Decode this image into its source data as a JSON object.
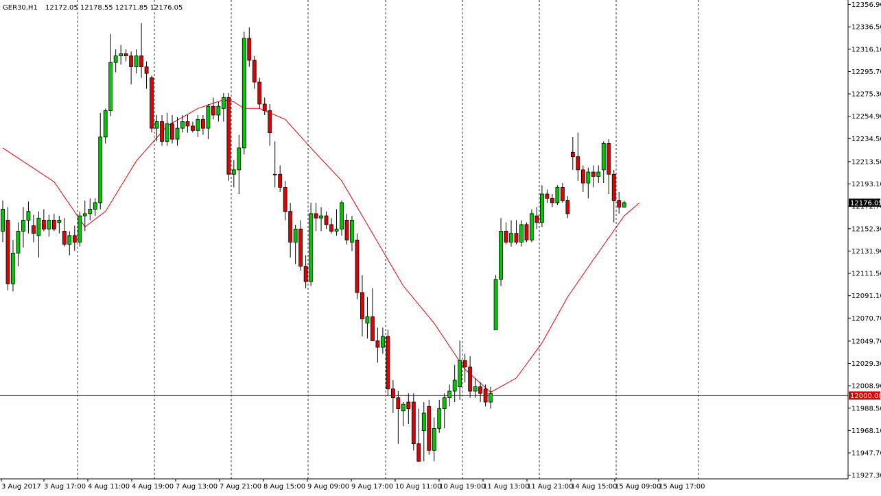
{
  "header": {
    "symbol": "GER30,H1",
    "ohlc": "12172.05 12178.55 12171.85 12176.05"
  },
  "colors": {
    "bull": "#00c800",
    "bear": "#e00000",
    "ma": "#e00000",
    "grid": "#000000",
    "hline": "#e00000",
    "background": "#ffffff"
  },
  "chart_data": {
    "type": "candlestick",
    "symbol": "GER30",
    "timeframe": "H1",
    "grid": "vertical dotted separators",
    "y_ticks": [
      "12356.90",
      "12336.50",
      "12316.10",
      "12295.70",
      "12275.30",
      "12254.90",
      "12234.50",
      "12213.50",
      "12193.10",
      "12172.70",
      "12152.30",
      "12131.90",
      "12111.50",
      "12091.10",
      "12070.70",
      "12049.70",
      "12029.30",
      "12008.90",
      "11988.50",
      "11968.10",
      "11947.70",
      "11927.30"
    ],
    "y_range": [
      11925.2,
      12358.5
    ],
    "x_ticks": [
      "3 Aug 2017",
      "3 Aug 17:00",
      "4 Aug 11:00",
      "4 Aug 19:00",
      "7 Aug 13:00",
      "7 Aug 21:00",
      "8 Aug 15:00",
      "9 Aug 09:00",
      "9 Aug 17:00",
      "10 Aug 11:00",
      "10 Aug 19:00",
      "11 Aug 13:00",
      "11 Aug 21:00",
      "14 Aug 15:00",
      "15 Aug 09:00",
      "15 Aug 17:00"
    ],
    "current_price": "12176.05",
    "horizontal_line": {
      "value": 12000.0,
      "label": "12000.00"
    },
    "candles": [
      {
        "o": 12150,
        "h": 12178,
        "l": 12140,
        "c": 12170
      },
      {
        "o": 12160,
        "h": 12172,
        "l": 12096,
        "c": 12102
      },
      {
        "o": 12102,
        "h": 12142,
        "l": 12095,
        "c": 12130
      },
      {
        "o": 12130,
        "h": 12158,
        "l": 12118,
        "c": 12150
      },
      {
        "o": 12150,
        "h": 12172,
        "l": 12135,
        "c": 12160
      },
      {
        "o": 12160,
        "h": 12177,
        "l": 12148,
        "c": 12168
      },
      {
        "o": 12155,
        "h": 12165,
        "l": 12140,
        "c": 12148
      },
      {
        "o": 12146,
        "h": 12168,
        "l": 12126,
        "c": 12162
      },
      {
        "o": 12160,
        "h": 12170,
        "l": 12150,
        "c": 12152
      },
      {
        "o": 12152,
        "h": 12165,
        "l": 12145,
        "c": 12160
      },
      {
        "o": 12160,
        "h": 12166,
        "l": 12150,
        "c": 12152
      },
      {
        "o": 12158,
        "h": 12164,
        "l": 12148,
        "c": 12160
      },
      {
        "o": 12150,
        "h": 12162,
        "l": 12136,
        "c": 12138
      },
      {
        "o": 12138,
        "h": 12150,
        "l": 12128,
        "c": 12146
      },
      {
        "o": 12146,
        "h": 12155,
        "l": 12132,
        "c": 12140
      },
      {
        "o": 12140,
        "h": 12168,
        "l": 12136,
        "c": 12164
      },
      {
        "o": 12164,
        "h": 12178,
        "l": 12150,
        "c": 12166
      },
      {
        "o": 12166,
        "h": 12180,
        "l": 12160,
        "c": 12170
      },
      {
        "o": 12170,
        "h": 12180,
        "l": 12164,
        "c": 12176
      },
      {
        "o": 12176,
        "h": 12258,
        "l": 12170,
        "c": 12236
      },
      {
        "o": 12236,
        "h": 12262,
        "l": 12230,
        "c": 12260
      },
      {
        "o": 12260,
        "h": 12330,
        "l": 12255,
        "c": 12304
      },
      {
        "o": 12304,
        "h": 12316,
        "l": 12295,
        "c": 12310
      },
      {
        "o": 12310,
        "h": 12320,
        "l": 12302,
        "c": 12312
      },
      {
        "o": 12312,
        "h": 12316,
        "l": 12305,
        "c": 12310
      },
      {
        "o": 12310,
        "h": 12314,
        "l": 12284,
        "c": 12300
      },
      {
        "o": 12300,
        "h": 12316,
        "l": 12294,
        "c": 12310
      },
      {
        "o": 12310,
        "h": 12340,
        "l": 12290,
        "c": 12300
      },
      {
        "o": 12300,
        "h": 12305,
        "l": 12280,
        "c": 12294
      },
      {
        "o": 12290,
        "h": 12292,
        "l": 12240,
        "c": 12244
      },
      {
        "o": 12244,
        "h": 12256,
        "l": 12232,
        "c": 12250
      },
      {
        "o": 12250,
        "h": 12256,
        "l": 12228,
        "c": 12232
      },
      {
        "o": 12232,
        "h": 12258,
        "l": 12228,
        "c": 12248
      },
      {
        "o": 12248,
        "h": 12256,
        "l": 12230,
        "c": 12234
      },
      {
        "o": 12234,
        "h": 12254,
        "l": 12228,
        "c": 12244
      },
      {
        "o": 12244,
        "h": 12256,
        "l": 12240,
        "c": 12250
      },
      {
        "o": 12250,
        "h": 12256,
        "l": 12240,
        "c": 12246
      },
      {
        "o": 12246,
        "h": 12250,
        "l": 12240,
        "c": 12242
      },
      {
        "o": 12242,
        "h": 12256,
        "l": 12236,
        "c": 12252
      },
      {
        "o": 12252,
        "h": 12256,
        "l": 12238,
        "c": 12244
      },
      {
        "o": 12244,
        "h": 12266,
        "l": 12234,
        "c": 12264
      },
      {
        "o": 12264,
        "h": 12272,
        "l": 12252,
        "c": 12256
      },
      {
        "o": 12256,
        "h": 12268,
        "l": 12250,
        "c": 12264
      },
      {
        "o": 12262,
        "h": 12276,
        "l": 12250,
        "c": 12272
      },
      {
        "o": 12272,
        "h": 12276,
        "l": 12196,
        "c": 12202
      },
      {
        "o": 12202,
        "h": 12215,
        "l": 12190,
        "c": 12206
      },
      {
        "o": 12206,
        "h": 12238,
        "l": 12184,
        "c": 12226
      },
      {
        "o": 12226,
        "h": 12332,
        "l": 12220,
        "c": 12326
      },
      {
        "o": 12326,
        "h": 12336,
        "l": 12300,
        "c": 12306
      },
      {
        "o": 12306,
        "h": 12310,
        "l": 12280,
        "c": 12286
      },
      {
        "o": 12286,
        "h": 12290,
        "l": 12262,
        "c": 12266
      },
      {
        "o": 12266,
        "h": 12272,
        "l": 12256,
        "c": 12260
      },
      {
        "o": 12260,
        "h": 12266,
        "l": 12228,
        "c": 12240
      },
      {
        "o": 12202,
        "h": 12232,
        "l": 12190,
        "c": 12202
      },
      {
        "o": 12202,
        "h": 12210,
        "l": 12186,
        "c": 12190
      },
      {
        "o": 12190,
        "h": 12196,
        "l": 12160,
        "c": 12168
      },
      {
        "o": 12168,
        "h": 12176,
        "l": 12126,
        "c": 12140
      },
      {
        "o": 12140,
        "h": 12156,
        "l": 12120,
        "c": 12152
      },
      {
        "o": 12152,
        "h": 12160,
        "l": 12114,
        "c": 12118
      },
      {
        "o": 12118,
        "h": 12128,
        "l": 12098,
        "c": 12104
      },
      {
        "o": 12104,
        "h": 12176,
        "l": 12100,
        "c": 12166
      },
      {
        "o": 12166,
        "h": 12176,
        "l": 12150,
        "c": 12162
      },
      {
        "o": 12162,
        "h": 12172,
        "l": 12150,
        "c": 12164
      },
      {
        "o": 12164,
        "h": 12168,
        "l": 12152,
        "c": 12156
      },
      {
        "o": 12156,
        "h": 12162,
        "l": 12148,
        "c": 12150
      },
      {
        "o": 12150,
        "h": 12170,
        "l": 12146,
        "c": 12152
      },
      {
        "o": 12152,
        "h": 12178,
        "l": 12146,
        "c": 12176
      },
      {
        "o": 12160,
        "h": 12166,
        "l": 12138,
        "c": 12142
      },
      {
        "o": 12140,
        "h": 12164,
        "l": 12132,
        "c": 12160
      },
      {
        "o": 12142,
        "h": 12148,
        "l": 12088,
        "c": 12094
      },
      {
        "o": 12094,
        "h": 12110,
        "l": 12054,
        "c": 12070
      },
      {
        "o": 12066,
        "h": 12090,
        "l": 12052,
        "c": 12072
      },
      {
        "o": 12072,
        "h": 12098,
        "l": 12050,
        "c": 12050
      },
      {
        "o": 12050,
        "h": 12062,
        "l": 12030,
        "c": 12044
      },
      {
        "o": 12044,
        "h": 12062,
        "l": 12038,
        "c": 12054
      },
      {
        "o": 12054,
        "h": 12060,
        "l": 12000,
        "c": 12006
      },
      {
        "o": 12006,
        "h": 12014,
        "l": 11984,
        "c": 11998
      },
      {
        "o": 11998,
        "h": 12004,
        "l": 11956,
        "c": 11988
      },
      {
        "o": 11986,
        "h": 11994,
        "l": 11972,
        "c": 11992
      },
      {
        "o": 11994,
        "h": 12002,
        "l": 11974,
        "c": 11988
      },
      {
        "o": 11994,
        "h": 12002,
        "l": 11950,
        "c": 11956
      },
      {
        "o": 11956,
        "h": 11988,
        "l": 11940,
        "c": 11940
      },
      {
        "o": 11968,
        "h": 11994,
        "l": 11940,
        "c": 11984
      },
      {
        "o": 11990,
        "h": 11996,
        "l": 11946,
        "c": 11950
      },
      {
        "o": 11950,
        "h": 11980,
        "l": 11940,
        "c": 11970
      },
      {
        "o": 11970,
        "h": 11996,
        "l": 11966,
        "c": 11988
      },
      {
        "o": 11988,
        "h": 12002,
        "l": 11970,
        "c": 11998
      },
      {
        "o": 11998,
        "h": 12010,
        "l": 11990,
        "c": 12004
      },
      {
        "o": 12004,
        "h": 12028,
        "l": 11994,
        "c": 12014
      },
      {
        "o": 12008,
        "h": 12050,
        "l": 11996,
        "c": 12032
      },
      {
        "o": 12032,
        "h": 12038,
        "l": 12012,
        "c": 12026
      },
      {
        "o": 12026,
        "h": 12036,
        "l": 11998,
        "c": 12004
      },
      {
        "o": 12004,
        "h": 12016,
        "l": 11998,
        "c": 12008
      },
      {
        "o": 12008,
        "h": 12012,
        "l": 11994,
        "c": 12002
      },
      {
        "o": 12006,
        "h": 12010,
        "l": 11990,
        "c": 11994
      },
      {
        "o": 11994,
        "h": 12008,
        "l": 11988,
        "c": 12002
      },
      {
        "o": 12060,
        "h": 12110,
        "l": 12060,
        "c": 12106
      },
      {
        "o": 12106,
        "h": 12162,
        "l": 12100,
        "c": 12150
      },
      {
        "o": 12150,
        "h": 12158,
        "l": 12138,
        "c": 12140
      },
      {
        "o": 12140,
        "h": 12160,
        "l": 12136,
        "c": 12148
      },
      {
        "o": 12148,
        "h": 12160,
        "l": 12138,
        "c": 12140
      },
      {
        "o": 12140,
        "h": 12160,
        "l": 12136,
        "c": 12156
      },
      {
        "o": 12156,
        "h": 12158,
        "l": 12140,
        "c": 12142
      },
      {
        "o": 12142,
        "h": 12170,
        "l": 12140,
        "c": 12166
      },
      {
        "o": 12164,
        "h": 12172,
        "l": 12152,
        "c": 12158
      },
      {
        "o": 12158,
        "h": 12192,
        "l": 12154,
        "c": 12184
      },
      {
        "o": 12184,
        "h": 12188,
        "l": 12176,
        "c": 12180
      },
      {
        "o": 12180,
        "h": 12184,
        "l": 12172,
        "c": 12176
      },
      {
        "o": 12176,
        "h": 12192,
        "l": 12174,
        "c": 12190
      },
      {
        "o": 12190,
        "h": 12194,
        "l": 12176,
        "c": 12178
      },
      {
        "o": 12178,
        "h": 12182,
        "l": 12162,
        "c": 12166
      },
      {
        "o": 12222,
        "h": 12236,
        "l": 12206,
        "c": 12218
      },
      {
        "o": 12218,
        "h": 12240,
        "l": 12196,
        "c": 12206
      },
      {
        "o": 12206,
        "h": 12210,
        "l": 12186,
        "c": 12194
      },
      {
        "o": 12194,
        "h": 12208,
        "l": 12180,
        "c": 12204
      },
      {
        "o": 12204,
        "h": 12210,
        "l": 12190,
        "c": 12200
      },
      {
        "o": 12200,
        "h": 12210,
        "l": 12194,
        "c": 12204
      },
      {
        "o": 12206,
        "h": 12232,
        "l": 12194,
        "c": 12230
      },
      {
        "o": 12230,
        "h": 12234,
        "l": 12184,
        "c": 12202
      },
      {
        "o": 12202,
        "h": 12206,
        "l": 12158,
        "c": 12178
      },
      {
        "o": 12178,
        "h": 12186,
        "l": 12166,
        "c": 12172
      },
      {
        "o": 12172,
        "h": 12178,
        "l": 12172,
        "c": 12176
      }
    ],
    "moving_average": [
      {
        "i": 0,
        "v": 12226
      },
      {
        "i": 10,
        "v": 12195
      },
      {
        "i": 16,
        "v": 12154
      },
      {
        "i": 20,
        "v": 12168
      },
      {
        "i": 26,
        "v": 12214
      },
      {
        "i": 32,
        "v": 12246
      },
      {
        "i": 38,
        "v": 12262
      },
      {
        "i": 43,
        "v": 12270
      },
      {
        "i": 45,
        "v": 12268
      },
      {
        "i": 47,
        "v": 12262
      },
      {
        "i": 50,
        "v": 12262
      },
      {
        "i": 55,
        "v": 12252
      },
      {
        "i": 60,
        "v": 12226
      },
      {
        "i": 66,
        "v": 12196
      },
      {
        "i": 72,
        "v": 12148
      },
      {
        "i": 78,
        "v": 12100
      },
      {
        "i": 84,
        "v": 12066
      },
      {
        "i": 90,
        "v": 12024
      },
      {
        "i": 95,
        "v": 12003
      },
      {
        "i": 100,
        "v": 12016
      },
      {
        "i": 105,
        "v": 12048
      },
      {
        "i": 110,
        "v": 12090
      },
      {
        "i": 115,
        "v": 12124
      },
      {
        "i": 121,
        "v": 12164
      },
      {
        "i": 124,
        "v": 12176
      }
    ]
  }
}
